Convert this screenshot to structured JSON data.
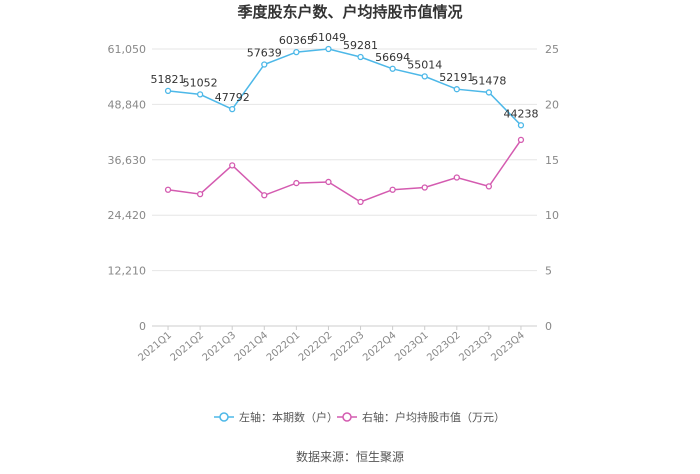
{
  "chart_data": {
    "type": "line",
    "title": "季度股东户数、户均持股市值情况",
    "categories": [
      "2021Q1",
      "2021Q2",
      "2021Q3",
      "2021Q4",
      "2022Q1",
      "2022Q2",
      "2022Q3",
      "2022Q4",
      "2023Q1",
      "2023Q2",
      "2023Q3",
      "2023Q4"
    ],
    "y_left": {
      "ticks": [
        "0",
        "12,210",
        "24,420",
        "36,630",
        "48,840",
        "61,050"
      ],
      "range": [
        0,
        61050
      ]
    },
    "y_right": {
      "ticks": [
        "0",
        "5",
        "10",
        "15",
        "20",
        "25"
      ],
      "range": [
        0,
        25
      ]
    },
    "series": [
      {
        "name": "左轴：本期数（户）",
        "axis": "left",
        "color": "#4db8e8",
        "values": [
          51821,
          51052,
          47792,
          57639,
          60365,
          61049,
          59281,
          56694,
          55014,
          52191,
          51478,
          44238
        ],
        "labels": [
          "51821",
          "51052",
          "47792",
          "57639",
          "60365",
          "61049",
          "59281",
          "56694",
          "55014",
          "52191",
          "51478",
          "44238"
        ]
      },
      {
        "name": "右轴：户均持股市值（万元）",
        "axis": "right",
        "color": "#d45bb0",
        "values": [
          12.3,
          11.9,
          14.5,
          11.8,
          12.9,
          13.0,
          11.2,
          12.3,
          12.5,
          13.4,
          12.6,
          16.8
        ]
      }
    ],
    "grid": true,
    "legend_position": "bottom"
  },
  "source": "数据来源：恒生聚源"
}
